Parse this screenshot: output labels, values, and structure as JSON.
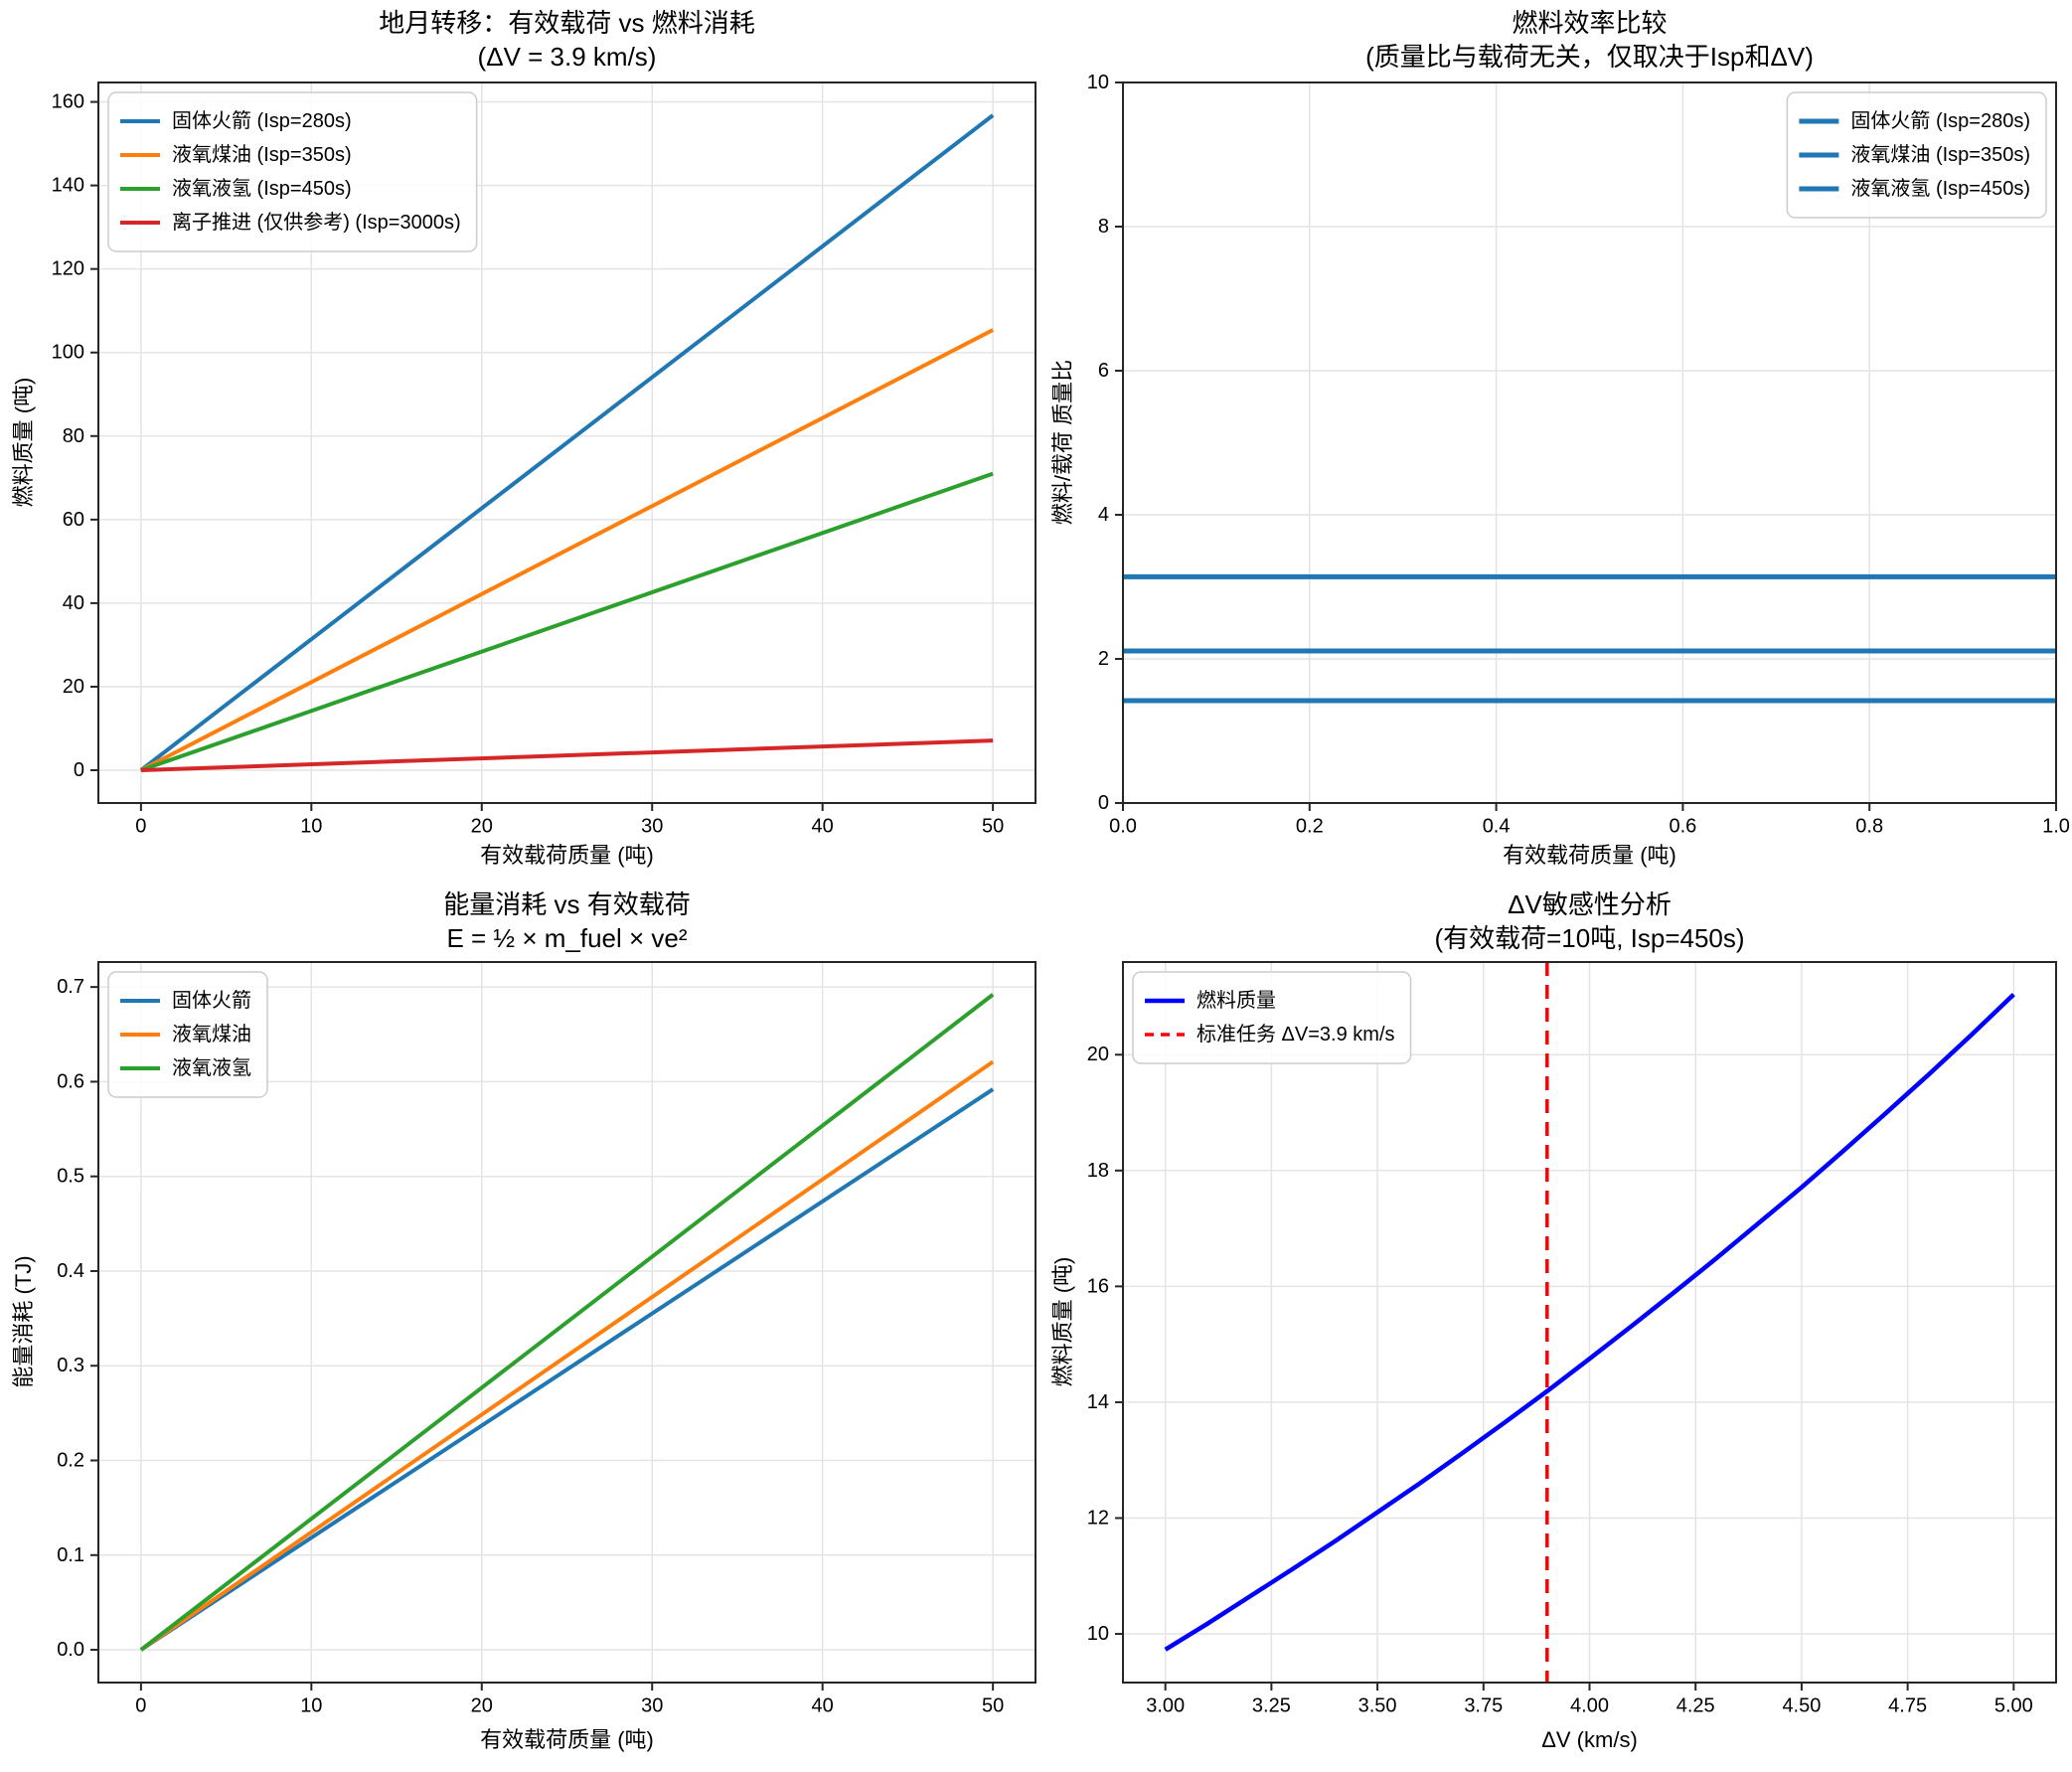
{
  "figure": {
    "background": "#ffffff",
    "grid_color": "#e4e4e4",
    "spine_color": "#262626"
  },
  "chart_data": [
    {
      "id": "payload-vs-fuel",
      "type": "line",
      "title_lines": [
        "地月转移：有效载荷 vs 燃料消耗",
        "(ΔV = 3.9 km/s)"
      ],
      "xlabel": "有效载荷质量 (吨)",
      "ylabel": "燃料质量 (吨)",
      "xlim": [
        -2.5,
        52.5
      ],
      "ylim": [
        -7.85,
        164.65
      ],
      "xticks": [
        0,
        10,
        20,
        30,
        40,
        50
      ],
      "xtick_labels": [
        "0",
        "10",
        "20",
        "30",
        "40",
        "50"
      ],
      "yticks": [
        0,
        20,
        40,
        60,
        80,
        100,
        120,
        140,
        160
      ],
      "ytick_labels": [
        "0",
        "20",
        "40",
        "60",
        "80",
        "100",
        "120",
        "140",
        "160"
      ],
      "grid": true,
      "legend": {
        "loc": "upper-left"
      },
      "series": [
        {
          "name": "固体火箭 (Isp=280s)",
          "color": "#1f77b4",
          "lw": 4,
          "x": [
            0,
            50
          ],
          "y": [
            0,
            156.8
          ]
        },
        {
          "name": "液氧煤油 (Isp=350s)",
          "color": "#ff7f0e",
          "lw": 4,
          "x": [
            0,
            50
          ],
          "y": [
            0,
            105.4
          ]
        },
        {
          "name": "液氧液氢 (Isp=450s)",
          "color": "#2ca02c",
          "lw": 4,
          "x": [
            0,
            50
          ],
          "y": [
            0,
            71.0
          ]
        },
        {
          "name": "离子推进 (仅供参考) (Isp=3000s)",
          "color": "#d62728",
          "lw": 4,
          "x": [
            0,
            50
          ],
          "y": [
            0,
            7.1
          ]
        }
      ]
    },
    {
      "id": "mass-ratio",
      "type": "line",
      "title_lines": [
        "燃料效率比较",
        "(质量比与载荷无关，仅取决于Isp和ΔV)"
      ],
      "xlabel": "有效载荷质量 (吨)",
      "ylabel": "燃料/载荷 质量比",
      "xlim": [
        0,
        1
      ],
      "ylim": [
        0,
        10
      ],
      "xticks": [
        0,
        0.2,
        0.4,
        0.6,
        0.8,
        1.0
      ],
      "xtick_labels": [
        "0.0",
        "0.2",
        "0.4",
        "0.6",
        "0.8",
        "1.0"
      ],
      "yticks": [
        0,
        2,
        4,
        6,
        8,
        10
      ],
      "ytick_labels": [
        "0",
        "2",
        "4",
        "6",
        "8",
        "10"
      ],
      "grid": true,
      "legend": {
        "loc": "upper-right"
      },
      "series": [
        {
          "name": "固体火箭 (Isp=280s)",
          "color": "#1f77b4",
          "lw": 5,
          "x": [
            0,
            1
          ],
          "y": [
            3.14,
            3.14
          ]
        },
        {
          "name": "液氧煤油 (Isp=350s)",
          "color": "#1f77b4",
          "lw": 5,
          "x": [
            0,
            1
          ],
          "y": [
            2.11,
            2.11
          ]
        },
        {
          "name": "液氧液氢 (Isp=450s)",
          "color": "#1f77b4",
          "lw": 5,
          "x": [
            0,
            1
          ],
          "y": [
            1.42,
            1.42
          ]
        }
      ]
    },
    {
      "id": "energy-vs-payload",
      "type": "line",
      "title_lines": [
        "能量消耗 vs 有效载荷",
        "E = ½ × m_fuel × ve²"
      ],
      "xlabel": "有效载荷质量 (吨)",
      "ylabel": "能量消耗 (TJ)",
      "xlim": [
        -2.5,
        52.5
      ],
      "ylim": [
        -0.0346,
        0.7264
      ],
      "xticks": [
        0,
        10,
        20,
        30,
        40,
        50
      ],
      "xtick_labels": [
        "0",
        "10",
        "20",
        "30",
        "40",
        "50"
      ],
      "yticks": [
        0,
        0.1,
        0.2,
        0.3,
        0.4,
        0.5,
        0.6,
        0.7
      ],
      "ytick_labels": [
        "0.0",
        "0.1",
        "0.2",
        "0.3",
        "0.4",
        "0.5",
        "0.6",
        "0.7"
      ],
      "grid": true,
      "legend": {
        "loc": "upper-left"
      },
      "series": [
        {
          "name": "固体火箭",
          "color": "#1f77b4",
          "lw": 4,
          "x": [
            0,
            50
          ],
          "y": [
            0,
            0.592
          ]
        },
        {
          "name": "液氧煤油",
          "color": "#ff7f0e",
          "lw": 4,
          "x": [
            0,
            50
          ],
          "y": [
            0,
            0.621
          ]
        },
        {
          "name": "液氧液氢",
          "color": "#2ca02c",
          "lw": 4,
          "x": [
            0,
            50
          ],
          "y": [
            0,
            0.692
          ]
        }
      ]
    },
    {
      "id": "dv-sensitivity",
      "type": "line",
      "title_lines": [
        "ΔV敏感性分析",
        "(有效载荷=10吨, Isp=450s)"
      ],
      "xlabel": "ΔV (km/s)",
      "ylabel": "燃料质量 (吨)",
      "xlim": [
        2.9,
        5.1
      ],
      "ylim": [
        9.16,
        21.6
      ],
      "xticks": [
        3.0,
        3.25,
        3.5,
        3.75,
        4.0,
        4.25,
        4.5,
        4.75,
        5.0
      ],
      "xtick_labels": [
        "3.00",
        "3.25",
        "3.50",
        "3.75",
        "4.00",
        "4.25",
        "4.50",
        "4.75",
        "5.00"
      ],
      "yticks": [
        10,
        12,
        14,
        16,
        18,
        20
      ],
      "ytick_labels": [
        "10",
        "12",
        "14",
        "16",
        "18",
        "20"
      ],
      "grid": true,
      "legend": {
        "loc": "upper-left"
      },
      "series": [
        {
          "name": "燃料质量",
          "color": "#0000ff",
          "lw": 4.5,
          "x": [
            3.0,
            3.1,
            3.2,
            3.3,
            3.4,
            3.5,
            3.6,
            3.7,
            3.8,
            3.9,
            4.0,
            4.1,
            4.2,
            4.3,
            4.4,
            4.5,
            4.6,
            4.7,
            4.8,
            4.9,
            5.0
          ],
          "y": [
            9.73,
            10.18,
            10.65,
            11.12,
            11.6,
            12.1,
            12.6,
            13.12,
            13.65,
            14.19,
            14.75,
            15.32,
            15.9,
            16.49,
            17.1,
            17.71,
            18.35,
            19.0,
            19.66,
            20.34,
            21.04
          ]
        }
      ],
      "vlines": [
        {
          "name": "标准任务 ΔV=3.9 km/s",
          "x": 3.9,
          "color": "#ff0000",
          "dash": true,
          "lw": 3.5
        }
      ]
    }
  ]
}
